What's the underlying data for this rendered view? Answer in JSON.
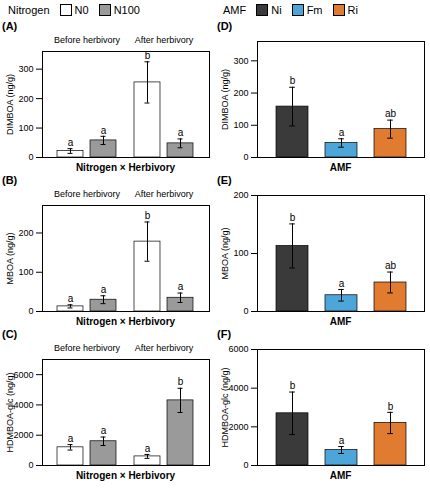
{
  "chart_data": [
    {
      "type": "bar",
      "title": "(A)",
      "legend": "top",
      "legend_title": "Nitrogen",
      "categories": [
        "Before herbivory",
        "After herbivory"
      ],
      "series": [
        {
          "name": "N0",
          "color": "#ffffff",
          "values": [
            22,
            255
          ],
          "errors": [
            8,
            70
          ],
          "letters": [
            "a",
            "b"
          ]
        },
        {
          "name": "N100",
          "color": "#9a9a9a",
          "values": [
            58,
            48
          ],
          "errors": [
            14,
            15
          ],
          "letters": [
            "a",
            "a"
          ]
        }
      ],
      "ylabel": "DIMBOA (ng/g)",
      "xlabel": "Nitrogen × Herbivory",
      "ylim": [
        0,
        360
      ],
      "yticks": [
        0,
        100,
        200,
        300
      ],
      "grid": false
    },
    {
      "type": "bar",
      "title": "(B)",
      "categories": [
        "Before herbivory",
        "After herbivory"
      ],
      "series": [
        {
          "name": "N0",
          "color": "#ffffff",
          "values": [
            13,
            178
          ],
          "errors": [
            4,
            50
          ],
          "letters": [
            "a",
            "b"
          ]
        },
        {
          "name": "N100",
          "color": "#9a9a9a",
          "values": [
            30,
            35
          ],
          "errors": [
            10,
            12
          ],
          "letters": [
            "a",
            "a"
          ]
        }
      ],
      "ylabel": "MBOA (ng/g)",
      "xlabel": "Nitrogen × Herbivory",
      "ylim": [
        0,
        270
      ],
      "yticks": [
        0,
        100,
        200
      ],
      "grid": false
    },
    {
      "type": "bar",
      "title": "(C)",
      "categories": [
        "Before herbivory",
        "After herbivory"
      ],
      "series": [
        {
          "name": "N0",
          "color": "#ffffff",
          "values": [
            1200,
            600
          ],
          "errors": [
            180,
            130
          ],
          "letters": [
            "a",
            "a"
          ]
        },
        {
          "name": "N100",
          "color": "#9a9a9a",
          "values": [
            1600,
            4300
          ],
          "errors": [
            280,
            800
          ],
          "letters": [
            "a",
            "b"
          ]
        }
      ],
      "ylabel": "HDMBOA-glc (ng/g)",
      "xlabel": "Nitrogen × Herbivory",
      "ylim": [
        0,
        7000
      ],
      "yticks": [
        0,
        2000,
        4000,
        6000
      ],
      "grid": false
    },
    {
      "type": "bar",
      "title": "(D)",
      "legend": "top",
      "legend_title": "AMF",
      "categories": [
        "Ni",
        "Fm",
        "Ri"
      ],
      "values": [
        158,
        45,
        88
      ],
      "errors": [
        60,
        13,
        28
      ],
      "letters": [
        "b",
        "a",
        "ab"
      ],
      "colors": [
        "#3a3a3a",
        "#4da6d9",
        "#e07b30"
      ],
      "ylabel": "DIMBOA (ng/g)",
      "xlabel": "AMF",
      "ylim": [
        0,
        360
      ],
      "yticks": [
        0,
        100,
        200,
        300
      ],
      "grid": false,
      "tick_labels": "y"
    },
    {
      "type": "bar",
      "title": "(E)",
      "categories": [
        "Ni",
        "Fm",
        "Ri"
      ],
      "values": [
        113,
        28,
        50
      ],
      "errors": [
        38,
        10,
        18
      ],
      "letters": [
        "b",
        "a",
        "ab"
      ],
      "colors": [
        "#3a3a3a",
        "#4da6d9",
        "#e07b30"
      ],
      "ylabel": "MBOA (ng/g)",
      "xlabel": "AMF",
      "ylim": [
        0,
        200
      ],
      "yticks": [
        0,
        100,
        200
      ],
      "grid": false,
      "tick_labels": "y"
    },
    {
      "type": "bar",
      "title": "(F)",
      "categories": [
        "Ni",
        "Fm",
        "Ri"
      ],
      "values": [
        2700,
        800,
        2200
      ],
      "errors": [
        1100,
        180,
        550
      ],
      "letters": [
        "b",
        "a",
        "b"
      ],
      "colors": [
        "#3a3a3a",
        "#4da6d9",
        "#e07b30"
      ],
      "ylabel": "HDMBOA-glc (ng/g)",
      "xlabel": "AMF",
      "ylim": [
        0,
        6000
      ],
      "yticks": [
        0,
        2000,
        4000,
        6000
      ],
      "grid": false,
      "tick_labels": "y"
    }
  ]
}
